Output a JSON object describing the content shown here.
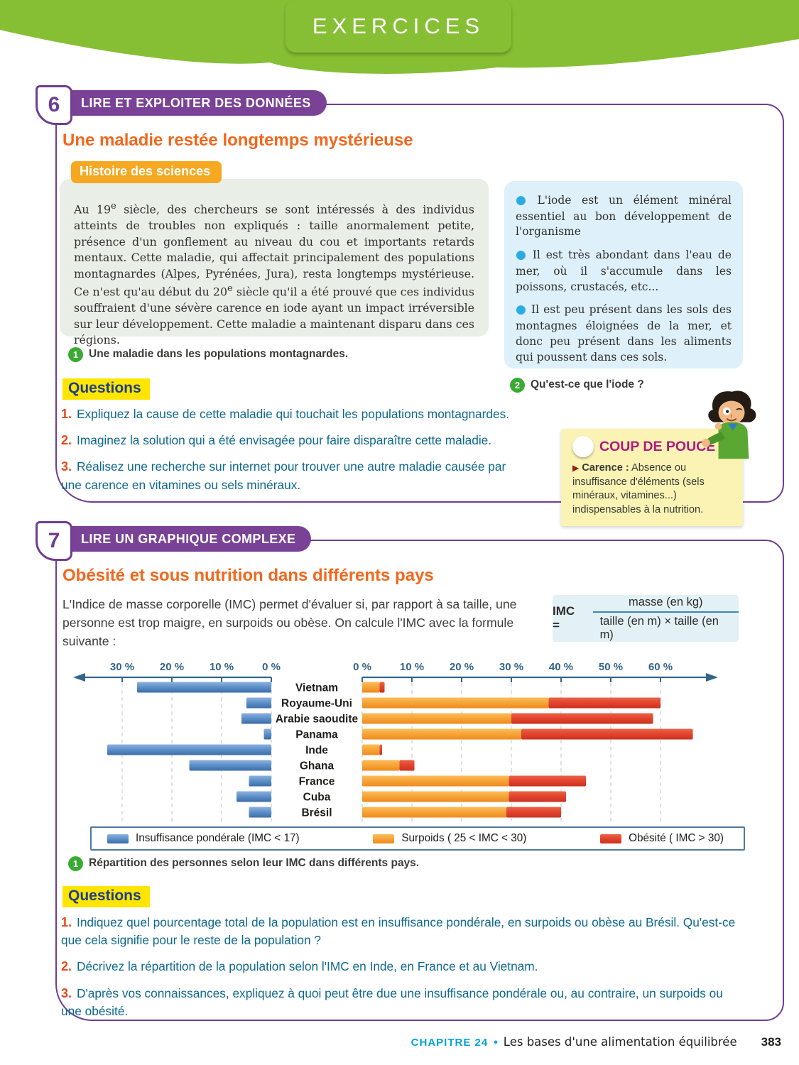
{
  "banner": {
    "label": "EXERCICES"
  },
  "exercise6": {
    "number": "6",
    "skill_label": "LIRE ET EXPLOITER DES DONNÉES",
    "title": "Une maladie restée longtemps mystérieuse",
    "tag_label": "Histoire des sciences",
    "document_text_segments": [
      {
        "t": "Au 19"
      },
      {
        "t": "e",
        "sup": true
      },
      {
        "t": " siècle, des chercheurs se sont intéressés à des individus atteints de troubles non expliqués : taille anormalement petite, présence d'un gonflement au niveau du cou et importants retards mentaux. Cette maladie, qui affectait principalement des populations montagnardes (Alpes, Pyrénées, Jura), resta longtemps mystérieuse. Ce n'est qu'au début du 20"
      },
      {
        "t": "e",
        "sup": true
      },
      {
        "t": " siècle qu'il a été prouvé que ces individus souffraient d'une sévère carence en iode ayant un impact irréversible sur leur développement. Cette maladie a maintenant disparu dans ces régions."
      }
    ],
    "figure_caption": {
      "number": "1",
      "text": "Une maladie dans les populations montagnardes."
    },
    "info_box_bullets": [
      "L'iode est un élément minéral essentiel au bon développement de l'organisme",
      "Il est très abondant dans l'eau de mer, où il s'accumule dans les poissons, crustacés, etc...",
      "Il est peu présent dans les sols des montagnes éloignées de la mer, et donc peu présent dans les aliments qui poussent dans ces sols."
    ],
    "question_caption": {
      "number": "2",
      "text": "Qu'est-ce que l'iode ?"
    },
    "questions_label": "Questions",
    "questions": [
      {
        "number": "1.",
        "text": "Expliquez la cause de cette maladie qui touchait les populations montagnardes."
      },
      {
        "number": "2.",
        "text": "Imaginez la solution qui a été envisagée pour faire disparaître cette maladie."
      },
      {
        "number": "3.",
        "text": "Réalisez une recherche sur internet pour trouver une autre maladie causée par une carence en vitamines ou sels minéraux."
      }
    ],
    "coup_de_pouce": {
      "title": "COUP DE POUCE",
      "term": "Carence :",
      "definition": "Absence ou insuffisance d'éléments (sels minéraux, vitamines...) indispensables à la nutrition."
    }
  },
  "exercise7": {
    "number": "7",
    "skill_label": "LIRE UN GRAPHIQUE COMPLEXE",
    "title": "Obésité et sous nutrition dans différents pays",
    "intro": "L'Indice de masse corporelle (IMC) permet d'évaluer si, par rapport à sa taille, une personne est trop maigre, en surpoids ou obèse. On calcule l'IMC avec la formule suivante :",
    "formula": {
      "lhs": "IMC =",
      "numerator": "masse (en kg)",
      "denominator": "taille (en m) × taille (en m)"
    },
    "figure_caption": {
      "number": "1",
      "text": "Répartition des personnes selon leur IMC dans différents pays."
    },
    "questions_label": "Questions",
    "questions": [
      {
        "number": "1.",
        "text": "Indiquez quel pourcentage total de la population est en insuffisance pondérale, en surpoids ou obèse au Brésil. Qu'est-ce que cela signifie pour le reste de la population ?"
      },
      {
        "number": "2.",
        "text": "Décrivez la répartition de la population selon l'IMC en Inde, en France et au Vietnam."
      },
      {
        "number": "3.",
        "text": "D'après vos connaissances, expliquez à quoi peut être due une insuffisance pondérale ou, au contraire, un surpoids ou une obésité."
      }
    ]
  },
  "chart_data": {
    "type": "bar",
    "variant": "diverging-horizontal-stacked",
    "title": "Répartition des personnes selon leur IMC dans différents pays",
    "categories": [
      "Vietnam",
      "Royaume-Uni",
      "Arabie saoudite",
      "Panama",
      "Inde",
      "Ghana",
      "France",
      "Cuba",
      "Brésil"
    ],
    "series": [
      {
        "name": "Insuffisance pondérale (IMC < 17)",
        "side": "left",
        "color": "#5b8fc9",
        "values": [
          27,
          5,
          6,
          1.5,
          33,
          16.5,
          4.5,
          7,
          4.5
        ]
      },
      {
        "name": "Surpoids ( 25 < IMC < 30)",
        "side": "right",
        "color": "#f6a338",
        "values": [
          3.5,
          37.5,
          30,
          32,
          3.5,
          7.5,
          29.5,
          29.5,
          29
        ]
      },
      {
        "name": "Obésité ( IMC > 30)",
        "side": "right",
        "color": "#e2432c",
        "values": [
          1,
          22.5,
          28.5,
          34.5,
          0.5,
          3,
          15.5,
          11.5,
          11
        ]
      }
    ],
    "left_axis": {
      "tick_labels": [
        "30 %",
        "20 %",
        "10 %",
        "0 %"
      ],
      "max": 30,
      "unit": "%"
    },
    "right_axis": {
      "tick_labels": [
        "0 %",
        "10 %",
        "20 %",
        "30 %",
        "40 %",
        "50 %",
        "60 %"
      ],
      "max": 60,
      "unit": "%"
    },
    "grid": "dashed-vertical",
    "legend_position": "bottom-box"
  },
  "footer": {
    "chapter": "CHAPITRE 24",
    "bullet": "•",
    "chapter_title": "Les bases d'une alimentation équilibrée",
    "page_number": "383"
  }
}
